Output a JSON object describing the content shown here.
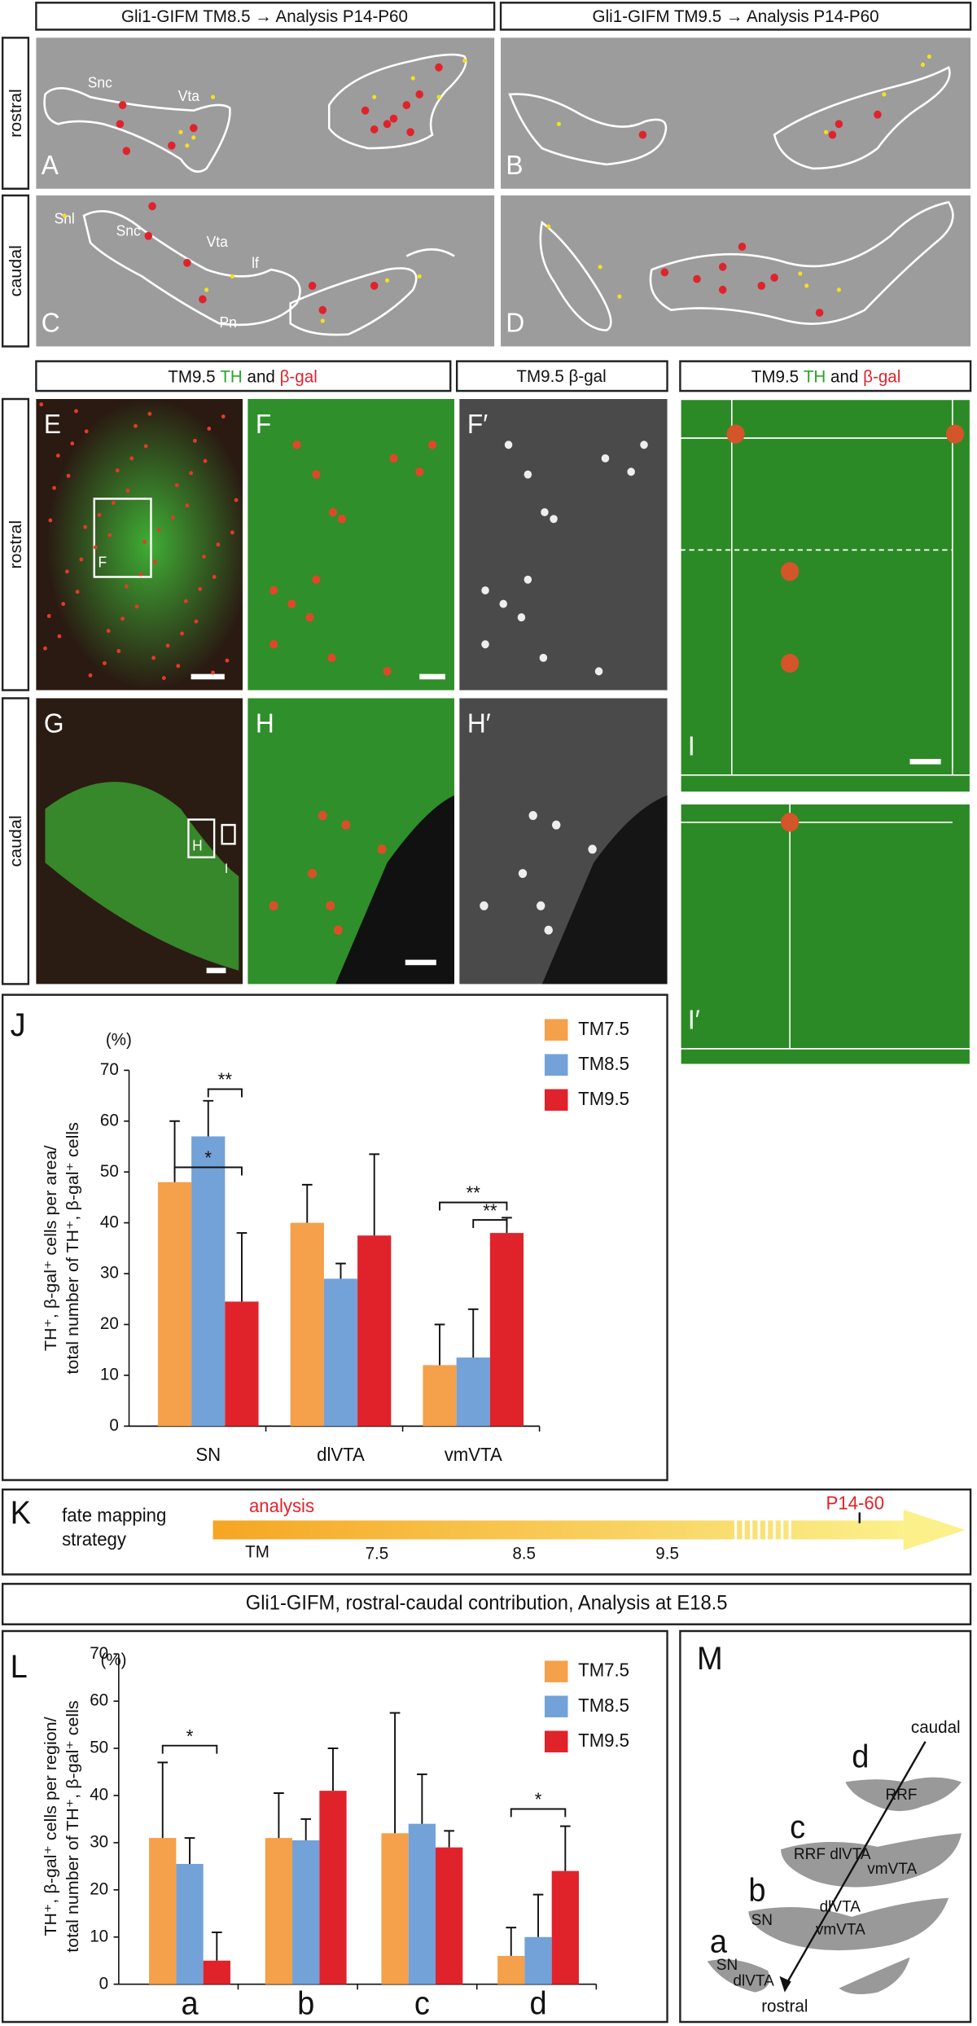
{
  "top_headers": [
    "Gli1-GIFM TM8.5 → Analysis P14-P60",
    "Gli1-GIFM TM9.5 → Analysis P14-P60"
  ],
  "row_labels": [
    "rostral",
    "caudal"
  ],
  "schematic_panels": [
    {
      "label": "A",
      "regions": [
        "Snc",
        "Vta"
      ]
    },
    {
      "label": "B"
    },
    {
      "label": "C",
      "regions": [
        "Snl",
        "Snc",
        "Vta",
        "lf",
        "Pn"
      ]
    },
    {
      "label": "D"
    }
  ],
  "image_header": {
    "prefix": "TM9.5",
    "green": "TH",
    "joiner": "and",
    "red": "β-gal"
  },
  "gray_header": "TM9.5 β-gal",
  "image_panels": [
    "E",
    "F",
    "F′",
    "G",
    "H",
    "H′",
    "I",
    "I′"
  ],
  "insets": [
    "F",
    "H",
    "I"
  ],
  "chart_data": [
    {
      "type": "bar",
      "label": "J",
      "y_unit": "(%)",
      "ylabel": [
        "TH⁺, β-gal⁺ cells per area/",
        "total number of TH⁺, β-gal⁺ cells"
      ],
      "categories": [
        "SN",
        "dlVTA",
        "vmVTA"
      ],
      "series": [
        {
          "name": "TM7.5",
          "color": "#f5a04a",
          "values": [
            48,
            40,
            12
          ],
          "errors": [
            12,
            7.5,
            8
          ]
        },
        {
          "name": "TM8.5",
          "color": "#72a2d8",
          "values": [
            57,
            29,
            13.5
          ],
          "errors": [
            7,
            3,
            9.5
          ]
        },
        {
          "name": "TM9.5",
          "color": "#e0232b",
          "values": [
            24.5,
            37.5,
            38
          ],
          "errors": [
            13.5,
            16,
            3
          ]
        }
      ],
      "annotations": [
        "*",
        "**",
        "**",
        "**"
      ],
      "ylim": [
        0,
        70
      ],
      "yticks": [
        0,
        10,
        20,
        30,
        40,
        50,
        60,
        70
      ],
      "legend": "top-right"
    },
    {
      "type": "bar",
      "label": "L",
      "y_unit": "(%)",
      "ylabel": [
        "TH⁺, β-gal⁺ cells per region/",
        "total number of TH⁺, β-gal⁺ cells"
      ],
      "categories": [
        "a",
        "b",
        "c",
        "d"
      ],
      "series": [
        {
          "name": "TM7.5",
          "color": "#f5a04a",
          "values": [
            31,
            31,
            32,
            6
          ],
          "errors": [
            16,
            9.5,
            25.5,
            6
          ]
        },
        {
          "name": "TM8.5",
          "color": "#72a2d8",
          "values": [
            25.5,
            30.5,
            34,
            10
          ],
          "errors": [
            5.5,
            4.5,
            10.5,
            9
          ]
        },
        {
          "name": "TM9.5",
          "color": "#e0232b",
          "values": [
            5,
            41,
            29,
            24
          ],
          "errors": [
            6,
            9,
            3.5,
            9.5
          ]
        }
      ],
      "annotations": [
        "*",
        "*"
      ],
      "ylim": [
        0,
        70
      ],
      "yticks": [
        0,
        10,
        20,
        30,
        40,
        50,
        60,
        70
      ],
      "legend": "top-right"
    }
  ],
  "timeline": {
    "label": "K",
    "title": [
      "fate mapping",
      "strategy"
    ],
    "start": "analysis",
    "end": "P14-60",
    "ticks": [
      "TM",
      "7.5",
      "8.5",
      "9.5"
    ]
  },
  "section_header": "Gli1-GIFM, rostral-caudal contribution, Analysis at E18.5",
  "diagram": {
    "label": "M",
    "top": "caudal",
    "bottom": "rostral",
    "levels": [
      {
        "letter": "d",
        "labels": [
          "RRF"
        ]
      },
      {
        "letter": "c",
        "labels": [
          "RRF dlVTA",
          "vmVTA"
        ]
      },
      {
        "letter": "b",
        "labels": [
          "SN",
          "dlVTA",
          "vmVTA"
        ]
      },
      {
        "letter": "a",
        "labels": [
          "SN",
          "dlVTA"
        ]
      }
    ]
  }
}
